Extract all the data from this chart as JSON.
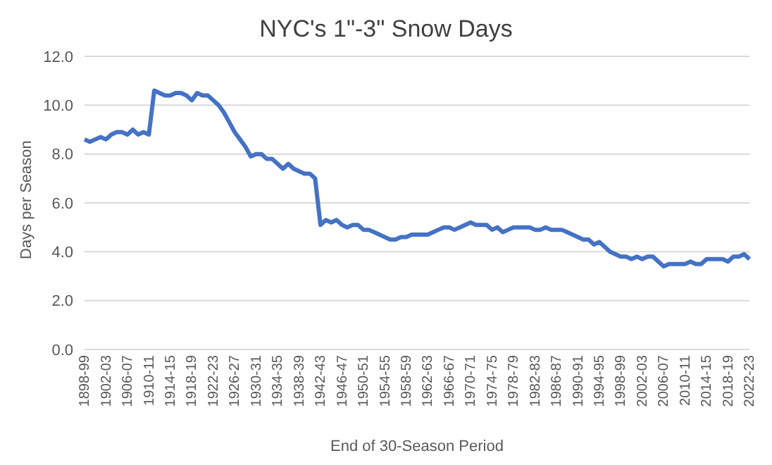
{
  "chart_data": {
    "type": "line",
    "title": "NYC's 1\"-3\" Snow Days",
    "xlabel": "End of 30-Season Period",
    "ylabel": "Days per Season",
    "categories": [
      "1898-99",
      null,
      null,
      null,
      "1902-03",
      null,
      null,
      null,
      "1906-07",
      null,
      null,
      null,
      "1910-11",
      null,
      null,
      null,
      "1914-15",
      null,
      null,
      null,
      "1918-19",
      null,
      null,
      null,
      "1922-23",
      null,
      null,
      null,
      "1926-27",
      null,
      null,
      null,
      "1930-31",
      null,
      null,
      null,
      "1934-35",
      null,
      null,
      null,
      "1938-39",
      null,
      null,
      null,
      "1942-43",
      null,
      null,
      null,
      "1946-47",
      null,
      null,
      null,
      "1950-51",
      null,
      null,
      null,
      "1954-55",
      null,
      null,
      null,
      "1958-59",
      null,
      null,
      null,
      "1962-63",
      null,
      null,
      null,
      "1966-67",
      null,
      null,
      null,
      "1970-71",
      null,
      null,
      null,
      "1974-75",
      null,
      null,
      null,
      "1978-79",
      null,
      null,
      null,
      "1982-83",
      null,
      null,
      null,
      "1986-87",
      null,
      null,
      null,
      "1990-91",
      null,
      null,
      null,
      "1994-95",
      null,
      null,
      null,
      "1998-99",
      null,
      null,
      null,
      "2002-03",
      null,
      null,
      null,
      "2006-07",
      null,
      null,
      null,
      "2010-11",
      null,
      null,
      null,
      "2014-15",
      null,
      null,
      null,
      "2018-19",
      null,
      null,
      null,
      "2022-23"
    ],
    "series": [
      {
        "color": "#4472c4",
        "values": [
          8.6,
          8.5,
          8.6,
          8.7,
          8.6,
          8.8,
          8.9,
          8.9,
          8.8,
          9.0,
          8.8,
          8.9,
          8.8,
          10.6,
          10.5,
          10.4,
          10.4,
          10.5,
          10.5,
          10.4,
          10.2,
          10.5,
          10.4,
          10.4,
          10.2,
          10.0,
          9.7,
          9.3,
          8.9,
          8.6,
          8.3,
          7.9,
          8.0,
          8.0,
          7.8,
          7.8,
          7.6,
          7.4,
          7.6,
          7.4,
          7.3,
          7.2,
          7.2,
          7.0,
          5.1,
          5.3,
          5.2,
          5.3,
          5.1,
          5.0,
          5.1,
          5.1,
          4.9,
          4.9,
          4.8,
          4.7,
          4.6,
          4.5,
          4.5,
          4.6,
          4.6,
          4.7,
          4.7,
          4.7,
          4.7,
          4.8,
          4.9,
          5.0,
          5.0,
          4.9,
          5.0,
          5.1,
          5.2,
          5.1,
          5.1,
          5.1,
          4.9,
          5.0,
          4.8,
          4.9,
          5.0,
          5.0,
          5.0,
          5.0,
          4.9,
          4.9,
          5.0,
          4.9,
          4.9,
          4.9,
          4.8,
          4.7,
          4.6,
          4.5,
          4.5,
          4.3,
          4.4,
          4.2,
          4.0,
          3.9,
          3.8,
          3.8,
          3.7,
          3.8,
          3.7,
          3.8,
          3.8,
          3.6,
          3.4,
          3.5,
          3.5,
          3.5,
          3.5,
          3.6,
          3.5,
          3.5,
          3.7,
          3.7,
          3.7,
          3.7,
          3.6,
          3.8,
          3.8,
          3.9,
          3.7
        ]
      }
    ],
    "ylim": [
      0,
      12
    ],
    "yticks": [
      {
        "value": 0,
        "label": "0.0"
      },
      {
        "value": 2,
        "label": "2.0"
      },
      {
        "value": 4,
        "label": "4.0"
      },
      {
        "value": 6,
        "label": "6.0"
      },
      {
        "value": 8,
        "label": "8.0"
      },
      {
        "value": 10,
        "label": "10.0"
      },
      {
        "value": 12,
        "label": "12.0"
      }
    ],
    "grid": "y",
    "marker": "none",
    "line_style": "solid"
  }
}
